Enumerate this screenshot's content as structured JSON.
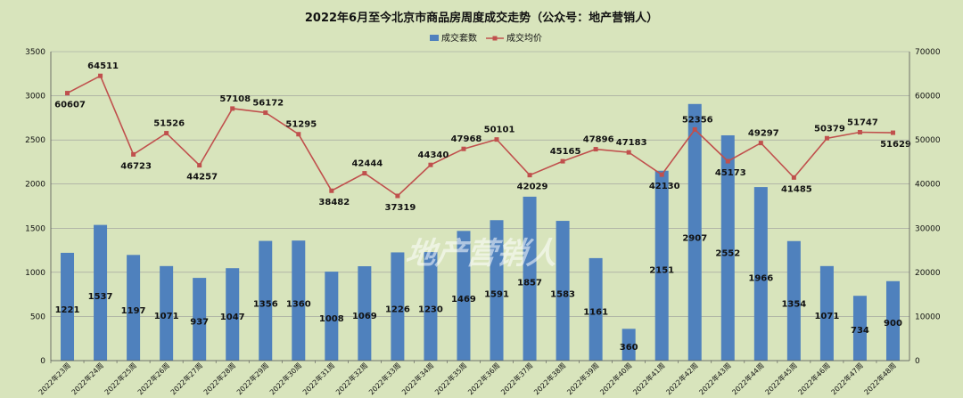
{
  "watermark": "地产营销人",
  "colors": {
    "bar": "#4f81bd",
    "line": "#c0504d",
    "grid": "#9a9a9a",
    "background": "#d8e4bc"
  },
  "chart_data": {
    "type": "bar",
    "title": "2022年6月至今北京市商品房周度成交走势（公众号：地产营销人）",
    "legend": {
      "position": "top",
      "items": [
        "成交套数",
        "成交均价"
      ]
    },
    "categories": [
      "2022年23周",
      "2022年24周",
      "2022年25周",
      "2022年26周",
      "2022年27周",
      "2022年28周",
      "2022年29周",
      "2022年30周",
      "2022年31周",
      "2022年32周",
      "2022年33周",
      "2022年34周",
      "2022年35周",
      "2022年36周",
      "2022年37周",
      "2022年38周",
      "2022年39周",
      "2022年40周",
      "2022年41周",
      "2022年42周",
      "2022年43周",
      "2022年44周",
      "2022年45周",
      "2022年46周",
      "2022年47周",
      "2022年48周"
    ],
    "series": [
      {
        "name": "成交套数",
        "type": "bar",
        "axis": "left",
        "values": [
          1221,
          1537,
          1197,
          1071,
          937,
          1047,
          1356,
          1360,
          1008,
          1069,
          1226,
          1230,
          1469,
          1591,
          1857,
          1583,
          1161,
          360,
          2151,
          2907,
          2552,
          1966,
          1354,
          1071,
          734,
          900
        ]
      },
      {
        "name": "成交均价",
        "type": "line",
        "axis": "right",
        "values": [
          60607,
          64511,
          46723,
          51526,
          44257,
          57108,
          56172,
          51295,
          38482,
          42444,
          37319,
          44340,
          47968,
          50101,
          42029,
          45165,
          47896,
          47183,
          42130,
          52356,
          45173,
          49297,
          41485,
          50379,
          51747,
          51629
        ]
      }
    ],
    "y_left": {
      "min": 0,
      "max": 3500,
      "step": 500
    },
    "y_right": {
      "min": 0,
      "max": 70000,
      "step": 10000
    },
    "grid": true
  }
}
